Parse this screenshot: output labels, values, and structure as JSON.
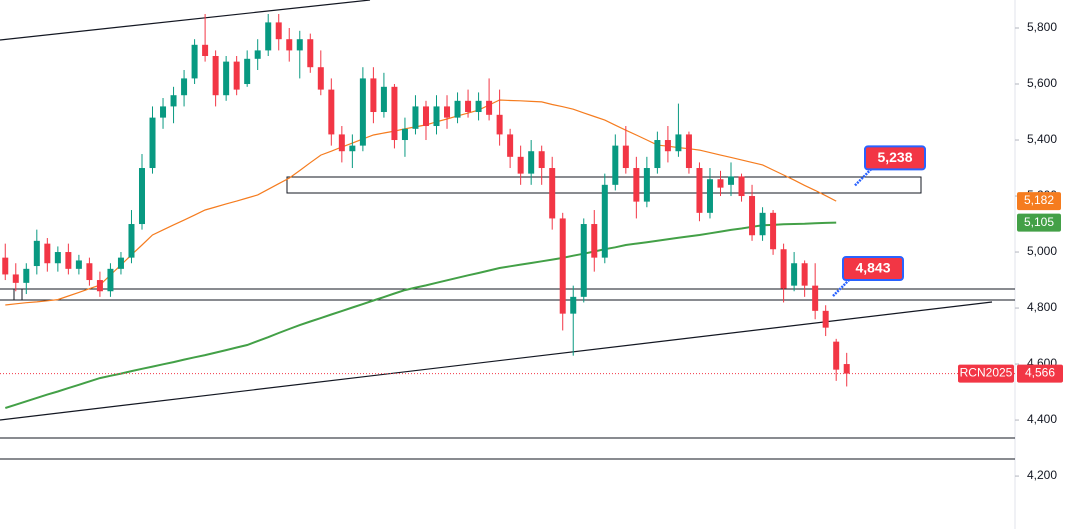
{
  "chart_data": {
    "type": "candlestick",
    "ylim": [
      4011,
      5900
    ],
    "yticks": [
      {
        "value": 4200,
        "label": "4,200"
      },
      {
        "value": 4400,
        "label": "4,400"
      },
      {
        "value": 4600,
        "label": "4,600"
      },
      {
        "value": 4800,
        "label": "4,800"
      },
      {
        "value": 5000,
        "label": "5,000"
      },
      {
        "value": 5200,
        "label": "5,200"
      },
      {
        "value": 5400,
        "label": "5,400"
      },
      {
        "value": 5600,
        "label": "5,600"
      },
      {
        "value": 5800,
        "label": "5,800"
      }
    ],
    "up_color": "#089981",
    "down_color": "#f23645",
    "ohlc": [
      [
        4980,
        5030,
        4900,
        4920
      ],
      [
        4920,
        4960,
        4860,
        4890
      ],
      [
        4890,
        4960,
        4850,
        4940
      ],
      [
        4950,
        5080,
        4920,
        5040
      ],
      [
        5030,
        5050,
        4930,
        4960
      ],
      [
        4960,
        5020,
        4930,
        5000
      ],
      [
        5000,
        5030,
        4920,
        4940
      ],
      [
        4940,
        4990,
        4920,
        4970
      ],
      [
        4960,
        4980,
        4880,
        4900
      ],
      [
        4900,
        4930,
        4840,
        4860
      ],
      [
        4860,
        4960,
        4840,
        4940
      ],
      [
        4940,
        5000,
        4920,
        4980
      ],
      [
        4980,
        5150,
        4960,
        5100
      ],
      [
        5100,
        5350,
        5080,
        5300
      ],
      [
        5300,
        5520,
        5280,
        5480
      ],
      [
        5480,
        5550,
        5440,
        5520
      ],
      [
        5520,
        5590,
        5460,
        5560
      ],
      [
        5560,
        5650,
        5520,
        5620
      ],
      [
        5620,
        5760,
        5600,
        5740
      ],
      [
        5740,
        5850,
        5680,
        5700
      ],
      [
        5700,
        5720,
        5520,
        5560
      ],
      [
        5560,
        5700,
        5540,
        5680
      ],
      [
        5680,
        5700,
        5560,
        5580
      ],
      [
        5600,
        5720,
        5590,
        5690
      ],
      [
        5690,
        5760,
        5650,
        5720
      ],
      [
        5720,
        5850,
        5700,
        5820
      ],
      [
        5820,
        5850,
        5720,
        5760
      ],
      [
        5760,
        5800,
        5680,
        5720
      ],
      [
        5720,
        5790,
        5620,
        5760
      ],
      [
        5760,
        5780,
        5640,
        5660
      ],
      [
        5660,
        5720,
        5560,
        5580
      ],
      [
        5580,
        5620,
        5380,
        5420
      ],
      [
        5420,
        5450,
        5320,
        5360
      ],
      [
        5360,
        5420,
        5300,
        5380
      ],
      [
        5380,
        5660,
        5360,
        5620
      ],
      [
        5620,
        5660,
        5460,
        5500
      ],
      [
        5500,
        5640,
        5480,
        5590
      ],
      [
        5590,
        5600,
        5370,
        5400
      ],
      [
        5400,
        5480,
        5340,
        5440
      ],
      [
        5440,
        5560,
        5420,
        5520
      ],
      [
        5520,
        5540,
        5400,
        5450
      ],
      [
        5450,
        5560,
        5420,
        5520
      ],
      [
        5520,
        5560,
        5440,
        5480
      ],
      [
        5480,
        5570,
        5460,
        5540
      ],
      [
        5540,
        5580,
        5480,
        5500
      ],
      [
        5500,
        5570,
        5470,
        5540
      ],
      [
        5540,
        5620,
        5470,
        5490
      ],
      [
        5490,
        5580,
        5380,
        5420
      ],
      [
        5420,
        5440,
        5300,
        5340
      ],
      [
        5340,
        5380,
        5240,
        5280
      ],
      [
        5280,
        5400,
        5240,
        5360
      ],
      [
        5360,
        5380,
        5240,
        5300
      ],
      [
        5300,
        5340,
        5080,
        5120
      ],
      [
        5120,
        5140,
        4720,
        4780
      ],
      [
        4780,
        4880,
        4630,
        4840
      ],
      [
        4840,
        5120,
        4820,
        5100
      ],
      [
        5100,
        5150,
        4930,
        4980
      ],
      [
        4980,
        5280,
        4960,
        5240
      ],
      [
        5240,
        5420,
        5220,
        5380
      ],
      [
        5380,
        5450,
        5280,
        5300
      ],
      [
        5300,
        5340,
        5120,
        5180
      ],
      [
        5180,
        5340,
        5160,
        5300
      ],
      [
        5300,
        5430,
        5280,
        5400
      ],
      [
        5400,
        5450,
        5320,
        5360
      ],
      [
        5360,
        5530,
        5340,
        5420
      ],
      [
        5420,
        5430,
        5280,
        5300
      ],
      [
        5300,
        5320,
        5110,
        5140
      ],
      [
        5140,
        5300,
        5120,
        5260
      ],
      [
        5260,
        5290,
        5200,
        5230
      ],
      [
        5240,
        5320,
        5200,
        5270
      ],
      [
        5270,
        5280,
        5180,
        5200
      ],
      [
        5200,
        5240,
        5040,
        5060
      ],
      [
        5060,
        5160,
        5040,
        5140
      ],
      [
        5140,
        5150,
        4990,
        5010
      ],
      [
        5010,
        5030,
        4820,
        4870
      ],
      [
        4880,
        5000,
        4860,
        4960
      ],
      [
        4960,
        4970,
        4840,
        4880
      ],
      [
        4880,
        4960,
        4760,
        4790
      ],
      [
        4790,
        4810,
        4700,
        4730
      ],
      [
        4680,
        4690,
        4540,
        4580
      ],
      [
        4600,
        4640,
        4520,
        4566
      ]
    ],
    "series": [
      {
        "color": "#f57c1f",
        "tag": {
          "value": 5182,
          "label": "5,182"
        },
        "values": [
          4811,
          4815,
          4819,
          4822,
          4826,
          4830,
          4843,
          4856,
          4869,
          4882,
          4918,
          4954,
          4990,
          5025,
          5061,
          5079,
          5097,
          5114,
          5132,
          5150,
          5161,
          5172,
          5182,
          5193,
          5204,
          5224,
          5244,
          5264,
          5291,
          5319,
          5346,
          5360,
          5375,
          5389,
          5404,
          5418,
          5425,
          5432,
          5440,
          5447,
          5454,
          5465,
          5475,
          5486,
          5496,
          5507,
          5525,
          5543,
          5541,
          5540,
          5538,
          5536,
          5527,
          5519,
          5510,
          5497,
          5484,
          5471,
          5453,
          5435,
          5418,
          5400,
          5382,
          5378,
          5373,
          5369,
          5364,
          5355,
          5346,
          5338,
          5329,
          5320,
          5311,
          5293,
          5275,
          5257,
          5238,
          5220,
          5201,
          5182,
          null
        ]
      },
      {
        "color": "#43a047",
        "tag": {
          "value": 5105,
          "label": "5,105"
        },
        "values": [
          4443,
          4455,
          4467,
          4479,
          4491,
          4502,
          4514,
          4526,
          4538,
          4550,
          4558,
          4566,
          4575,
          4583,
          4591,
          4599,
          4607,
          4616,
          4624,
          4632,
          4641,
          4650,
          4659,
          4668,
          4682,
          4696,
          4711,
          4725,
          4739,
          4752,
          4764,
          4777,
          4789,
          4802,
          4814,
          4827,
          4839,
          4852,
          4864,
          4873,
          4881,
          4890,
          4899,
          4908,
          4917,
          4925,
          4934,
          4943,
          4949,
          4955,
          4961,
          4967,
          4973,
          4979,
          4987,
          4994,
          5002,
          5010,
          5017,
          5025,
          5030,
          5035,
          5040,
          5046,
          5051,
          5056,
          5061,
          5067,
          5073,
          5079,
          5084,
          5090,
          5096,
          5097,
          5099,
          5100,
          5101,
          5103,
          5104,
          5105,
          null
        ]
      }
    ],
    "symbol": "RCN2025",
    "last_price": {
      "value": 4566,
      "label": "4,566"
    },
    "annotations": [
      {
        "value": 5238,
        "label": "5,238"
      },
      {
        "value": 4843,
        "label": "4,843"
      }
    ]
  }
}
